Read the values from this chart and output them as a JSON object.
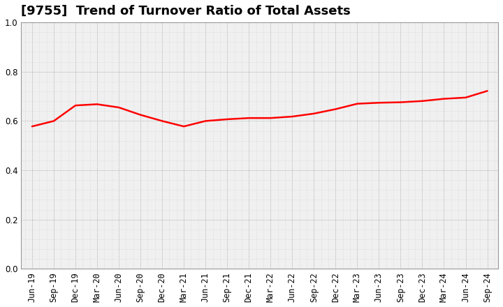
{
  "title": "[9755]  Trend of Turnover Ratio of Total Assets",
  "x_labels": [
    "Jun-19",
    "Sep-19",
    "Dec-19",
    "Mar-20",
    "Jun-20",
    "Sep-20",
    "Dec-20",
    "Mar-21",
    "Jun-21",
    "Sep-21",
    "Dec-21",
    "Mar-22",
    "Jun-22",
    "Sep-22",
    "Dec-22",
    "Mar-23",
    "Jun-23",
    "Sep-23",
    "Dec-23",
    "Mar-24",
    "Jun-24",
    "Sep-24"
  ],
  "values": [
    0.578,
    0.6,
    0.663,
    0.668,
    0.655,
    0.625,
    0.6,
    0.578,
    0.6,
    0.607,
    0.612,
    0.612,
    0.618,
    0.63,
    0.648,
    0.67,
    0.674,
    0.676,
    0.681,
    0.69,
    0.695,
    0.722
  ],
  "line_color": "#FF0000",
  "line_width": 1.8,
  "ylim": [
    0.0,
    1.0
  ],
  "yticks": [
    0.0,
    0.2,
    0.4,
    0.6,
    0.8,
    1.0
  ],
  "background_color": "#ffffff",
  "plot_bg_color": "#f0f0f0",
  "grid_color_major": "#999999",
  "grid_color_minor": "#cccccc",
  "title_fontsize": 13,
  "tick_fontsize": 8.5
}
